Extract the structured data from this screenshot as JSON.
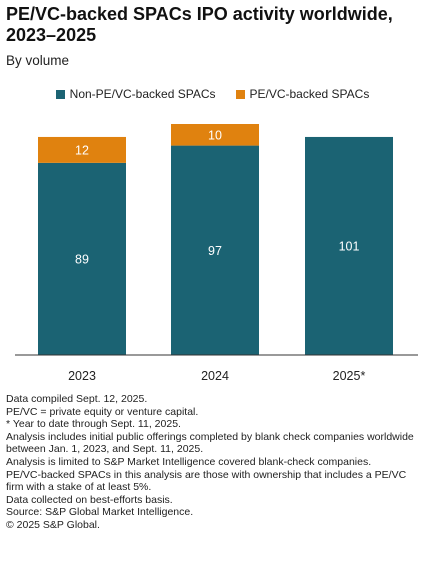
{
  "header": {
    "title": "PE/VC-backed SPACs IPO activity worldwide, 2023–2025",
    "subtitle": "By volume"
  },
  "colors": {
    "non_pe": "#1b6373",
    "pe": "#e0820f",
    "axis": "#333333"
  },
  "chart_data": {
    "type": "bar",
    "stacked": true,
    "title": "PE/VC-backed SPACs IPO activity worldwide, 2023–2025",
    "subtitle": "By volume",
    "categories": [
      "2023",
      "2024",
      "2025*"
    ],
    "series": [
      {
        "name": "Non-PE/VC-backed SPACs",
        "values": [
          89,
          97,
          101
        ],
        "color": "#1b6373"
      },
      {
        "name": "PE/VC-backed SPACs",
        "values": [
          12,
          10,
          null
        ],
        "color": "#e0820f"
      }
    ],
    "ylim": [
      0,
      107
    ],
    "grid": false,
    "legend_position": "top"
  },
  "notes": [
    "Data compiled Sept. 12, 2025.",
    "PE/VC = private equity or venture capital.",
    "* Year to date through Sept. 11, 2025.",
    "Analysis includes initial public offerings completed by blank check companies worldwide between Jan. 1, 2023, and Sept. 11, 2025.",
    "Analysis is limited to S&P Market Intelligence covered blank-check companies.",
    "PE/VC-backed SPACs in this analysis are those with ownership that includes a PE/VC firm with a stake of at least 5%.",
    "Data collected on best-efforts basis.",
    "Source: S&P Global Market Intelligence.",
    "© 2025 S&P Global."
  ]
}
